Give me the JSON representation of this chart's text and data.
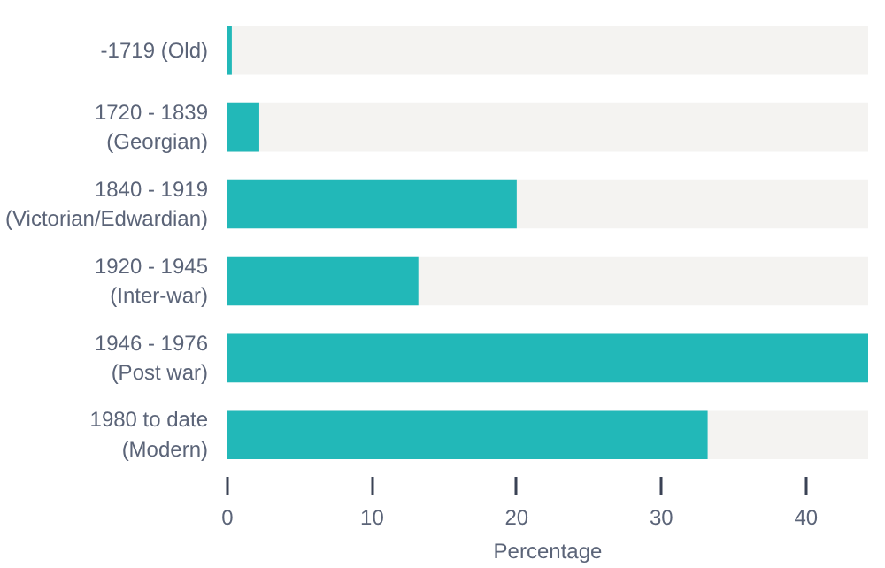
{
  "chart_data": {
    "type": "bar",
    "orientation": "horizontal",
    "xlabel": "Percentage",
    "categories": [
      "-1719 (Old)",
      "1720 - 1839\n(Georgian)",
      "1840 - 1919\n(Victorian/Edwardian)",
      "1920 - 1945\n(Inter-war)",
      "1946 - 1976\n(Post war)",
      "1980 to date\n(Modern)"
    ],
    "values": [
      0.3,
      2.2,
      20,
      13.2,
      44.3,
      33.2
    ],
    "color": "#22b8b8",
    "xlim": [
      0,
      44.3
    ],
    "xticks": [
      0,
      10,
      20,
      30,
      40
    ],
    "grid": false
  }
}
